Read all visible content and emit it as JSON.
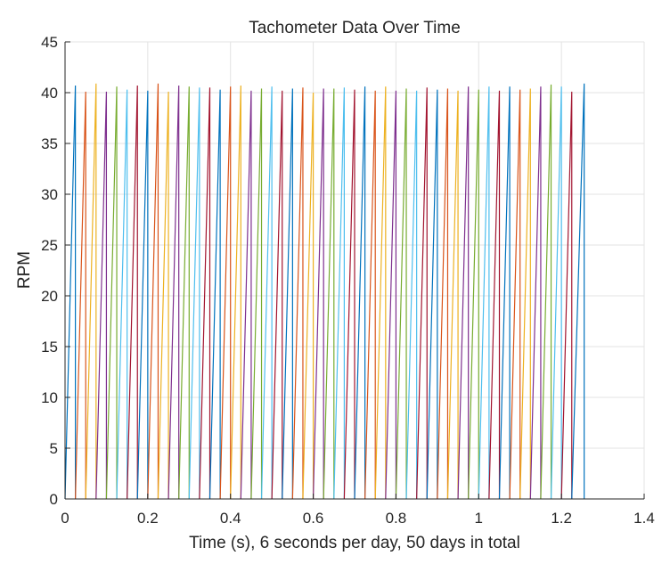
{
  "chart_data": {
    "type": "line",
    "title": "Tachometer Data Over Time",
    "xlabel": "Time (s), 6 seconds per day, 50 days in total",
    "ylabel": "RPM",
    "xlim": [
      0,
      1.4
    ],
    "ylim": [
      0,
      45
    ],
    "x_ticks": [
      "0",
      "0.2",
      "0.4",
      "0.6",
      "0.8",
      "1",
      "1.2",
      "1.4"
    ],
    "y_ticks": [
      "0",
      "5",
      "10",
      "15",
      "20",
      "25",
      "30",
      "35",
      "40",
      "45"
    ],
    "grid": true,
    "legend": "none",
    "series_count": 50,
    "series_shape": "each series ramps linearly from 0 RPM to a peak of about 40-41 RPM, then drops back to 0",
    "ramp_start_x": [
      0.0,
      0.025,
      0.05,
      0.075,
      0.1,
      0.125,
      0.15,
      0.175,
      0.2,
      0.225,
      0.25,
      0.275,
      0.3,
      0.325,
      0.35,
      0.375,
      0.4,
      0.425,
      0.45,
      0.475,
      0.5,
      0.525,
      0.55,
      0.575,
      0.6,
      0.625,
      0.65,
      0.675,
      0.7,
      0.725,
      0.75,
      0.775,
      0.8,
      0.825,
      0.85,
      0.875,
      0.9,
      0.925,
      0.95,
      0.975,
      1.0,
      1.025,
      1.05,
      1.075,
      1.1,
      1.125,
      1.15,
      1.175,
      1.2,
      1.225
    ],
    "ramp_end_x": [
      0.025,
      0.05,
      0.075,
      0.1,
      0.125,
      0.15,
      0.175,
      0.2,
      0.225,
      0.25,
      0.275,
      0.3,
      0.325,
      0.35,
      0.375,
      0.4,
      0.425,
      0.45,
      0.475,
      0.5,
      0.525,
      0.55,
      0.575,
      0.6,
      0.625,
      0.65,
      0.675,
      0.7,
      0.725,
      0.75,
      0.775,
      0.8,
      0.825,
      0.85,
      0.875,
      0.9,
      0.925,
      0.95,
      0.975,
      1.0,
      1.025,
      1.05,
      1.075,
      1.1,
      1.125,
      1.15,
      1.175,
      1.2,
      1.225,
      1.255
    ],
    "peaks": [
      40.7,
      40.1,
      40.9,
      40.1,
      40.6,
      40.3,
      40.7,
      40.2,
      40.9,
      40.1,
      40.7,
      40.6,
      40.5,
      40.5,
      40.3,
      40.6,
      40.7,
      40.2,
      40.4,
      40.6,
      40.2,
      40.4,
      40.5,
      40.0,
      40.4,
      40.4,
      40.5,
      40.3,
      40.6,
      40.2,
      40.6,
      40.2,
      40.4,
      40.2,
      40.5,
      40.3,
      40.4,
      40.2,
      40.6,
      40.3,
      40.6,
      40.2,
      40.6,
      40.3,
      40.4,
      40.6,
      40.8,
      40.6,
      40.1,
      40.9
    ],
    "colors": [
      "#0072BD",
      "#D95319",
      "#EDB120",
      "#7E2F8E",
      "#77AC30",
      "#4DBEEE",
      "#A2142F"
    ]
  }
}
